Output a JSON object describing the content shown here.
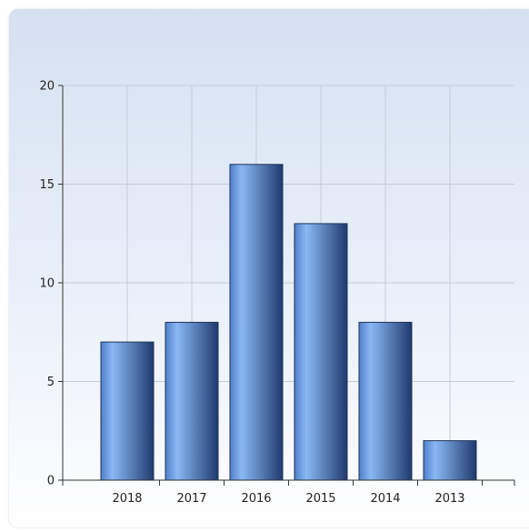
{
  "chart_data": {
    "type": "bar",
    "title": "",
    "xlabel": "",
    "ylabel": "",
    "categories": [
      "2018",
      "2017",
      "2016",
      "2015",
      "2014",
      "2013"
    ],
    "values": [
      7,
      8,
      16,
      13,
      8,
      2
    ],
    "ylim": [
      0,
      20
    ],
    "yticks": [
      "0",
      "5",
      "10",
      "15",
      "20"
    ],
    "grid": true,
    "legend": "none",
    "colors": {
      "bar_light": "#8ab8f5",
      "bar_mid": "#4f7fc8",
      "bar_dark": "#1f3a6e",
      "bar_edge": "#1e3358",
      "grid": "#c5ccd8",
      "axis": "#333333"
    }
  }
}
